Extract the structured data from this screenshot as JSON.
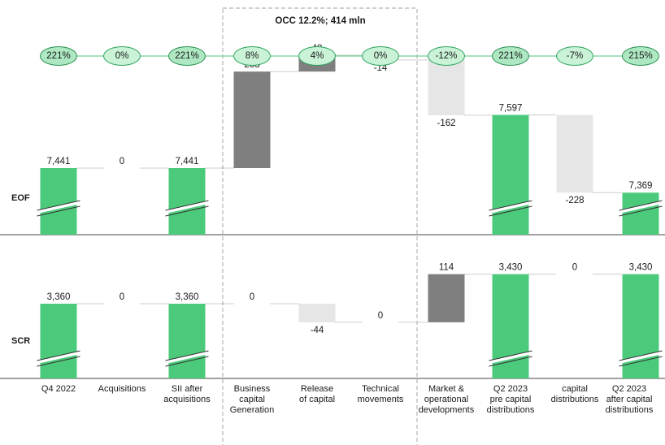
{
  "occ_label": "OCC 12.2%; 414 mln",
  "rows": {
    "eof": "EOF",
    "scr": "SCR"
  },
  "categories": [
    "Q4 2022",
    "Acquisitions",
    "SII after\nacquisitions",
    "Business\ncapital\nGeneration",
    "Release\nof capital",
    "Technical\nmovements",
    "Market &\noperational\ndevelopments",
    "Q2 2023\npre capital\ndistributions",
    "capital\ndistributions",
    "Q2 2023\nafter capital\ndistributions"
  ],
  "ratios": [
    "221%",
    "0%",
    "221%",
    "8%",
    "4%",
    "0%",
    "-12%",
    "221%",
    "-7%",
    "215%"
  ],
  "colors": {
    "total": "#4cca7c",
    "increase": "#7f7f7f",
    "decrease": "#e6e6e6",
    "bubble_fill": "#c9f2d6",
    "bubble_border": "#2fa45e"
  },
  "chart_data": [
    {
      "type": "bar",
      "subtype": "waterfall",
      "name": "EOF",
      "categories": [
        "Q4 2022",
        "Acquisitions",
        "SII after acquisitions",
        "Business capital Generation",
        "Release of capital",
        "Technical movements",
        "Market & operational developments",
        "Q2 2023 pre capital distributions",
        "capital distributions",
        "Q2 2023 after capital distributions"
      ],
      "values": [
        7441,
        0,
        7441,
        283,
        48,
        -14,
        -162,
        7597,
        -228,
        7369
      ],
      "labels": [
        "7,441",
        "0",
        "7,441",
        "283",
        "48",
        "-14",
        "-162",
        "7,597",
        "-228",
        "7,369"
      ],
      "kinds": [
        "total",
        "delta",
        "total",
        "delta",
        "delta",
        "delta",
        "delta",
        "total",
        "delta",
        "total"
      ],
      "axis_break": true
    },
    {
      "type": "bar",
      "subtype": "waterfall",
      "name": "SCR",
      "categories": [
        "Q4 2022",
        "Acquisitions",
        "SII after acquisitions",
        "Business capital Generation",
        "Release of capital",
        "Technical movements",
        "Market & operational developments",
        "Q2 2023 pre capital distributions",
        "capital distributions",
        "Q2 2023 after capital distributions"
      ],
      "values": [
        3360,
        0,
        3360,
        0,
        -44,
        0,
        114,
        3430,
        0,
        3430
      ],
      "labels": [
        "3,360",
        "0",
        "3,360",
        "0",
        "-44",
        "0",
        "114",
        "3,430",
        "0",
        "3,430"
      ],
      "kinds": [
        "total",
        "delta",
        "total",
        "delta",
        "delta",
        "delta",
        "delta",
        "total",
        "delta",
        "total"
      ],
      "axis_break": true
    }
  ]
}
